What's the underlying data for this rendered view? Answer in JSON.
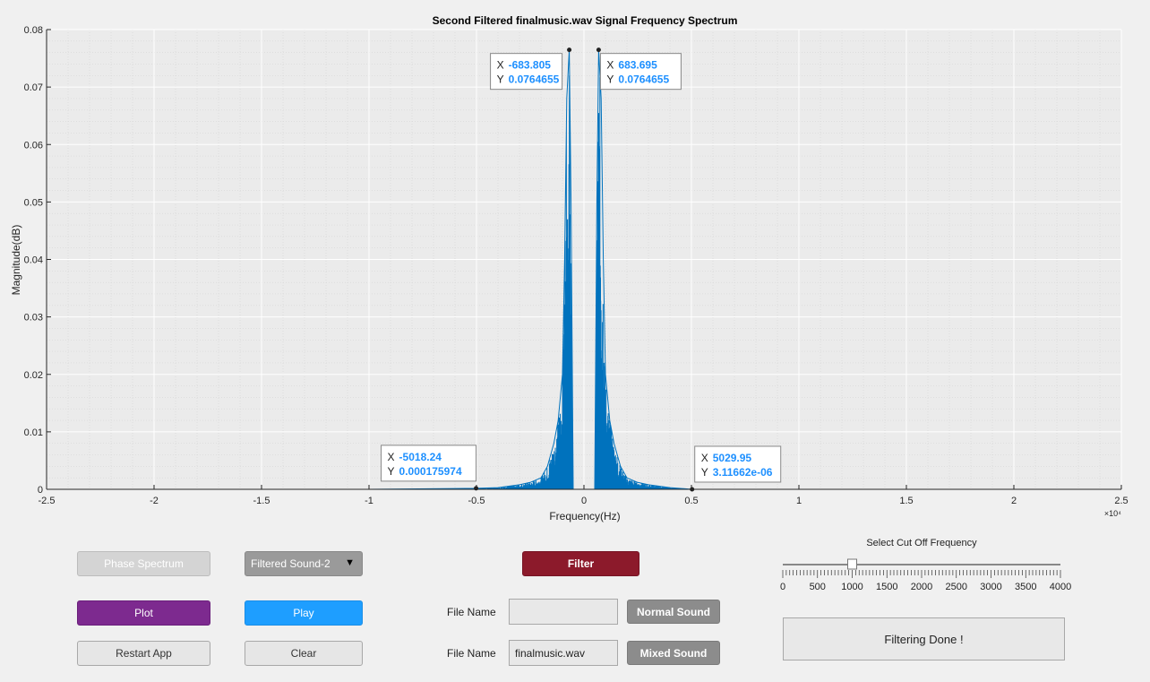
{
  "chart_data": {
    "type": "line",
    "title": "Second Filtered finalmusic.wav Signal Frequency Spectrum",
    "xlabel": "Frequency(Hz)",
    "ylabel": "Magnitude(dB)",
    "xlim": [
      -25000,
      25000
    ],
    "ylim": [
      0,
      0.08
    ],
    "x_exponent_label": "×10⁴",
    "x_tick_labels": [
      "-2.5",
      "-2",
      "-1.5",
      "-1",
      "-0.5",
      "0",
      "0.5",
      "1",
      "1.5",
      "2",
      "2.5"
    ],
    "y_tick_labels": [
      "0",
      "0.01",
      "0.02",
      "0.03",
      "0.04",
      "0.05",
      "0.06",
      "0.07",
      "0.08"
    ],
    "grid": true,
    "series_color": "#0072bd",
    "series": [
      {
        "x": [
          -22000,
          -10000,
          -5018.24,
          -4000,
          -3000,
          -2500,
          -2000,
          -1700,
          -1400,
          -1200,
          -1000,
          -900,
          -800,
          -683.805,
          -600,
          -500,
          0,
          500,
          600,
          683.695,
          800,
          900,
          1000,
          1200,
          1400,
          1700,
          2000,
          2500,
          3000,
          4000,
          5029.95,
          10000,
          22000
        ],
        "y": [
          0,
          0,
          0.000175974,
          0.0003,
          0.0008,
          0.0012,
          0.002,
          0.004,
          0.008,
          0.012,
          0.02,
          0.04,
          0.068,
          0.0764655,
          0.05,
          0,
          0,
          0,
          0.05,
          0.0764655,
          0.068,
          0.04,
          0.02,
          0.012,
          0.008,
          0.004,
          0.002,
          0.0012,
          0.0008,
          0.0003,
          3.1166e-06,
          0,
          0
        ]
      }
    ],
    "datatips": [
      {
        "x": -683.805,
        "y": 0.0764655,
        "x_text": "-683.805",
        "y_text": "0.0764655"
      },
      {
        "x": 683.695,
        "y": 0.0764655,
        "x_text": "683.695",
        "y_text": "0.0764655"
      },
      {
        "x": -5018.24,
        "y": 0.000175974,
        "x_text": "-5018.24",
        "y_text": "0.000175974"
      },
      {
        "x": 5029.95,
        "y": 3.1166e-06,
        "x_text": "5029.95",
        "y_text": "3.11662e-06"
      }
    ]
  },
  "controls": {
    "phase_spectrum": "Phase Spectrum",
    "sound_select": "Filtered Sound-2",
    "filter": "Filter",
    "plot": "Plot",
    "play": "Play",
    "restart": "Restart App",
    "clear": "Clear",
    "file_name_label_1": "File Name",
    "file_name_value_1": "",
    "normal_sound": "Normal Sound",
    "file_name_label_2": "File Name",
    "file_name_value_2": "finalmusic.wav",
    "mixed_sound": "Mixed Sound",
    "status": "Filtering Done !"
  },
  "slider": {
    "title": "Select Cut Off Frequency",
    "min": 0,
    "max": 4000,
    "value": 1000,
    "tick_labels": [
      "0",
      "500",
      "1000",
      "1500",
      "2000",
      "2500",
      "3000",
      "3500",
      "4000"
    ]
  }
}
